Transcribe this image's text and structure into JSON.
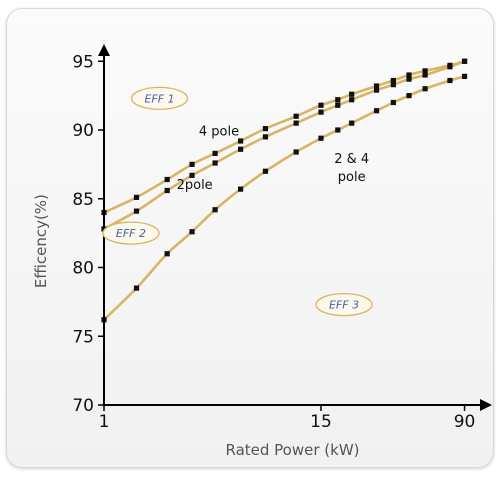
{
  "chart_data": {
    "type": "scatter",
    "xlabel": "Rated Power (kW)",
    "ylabel": "Efficency(%)",
    "x_scale": "log",
    "xlim": [
      1,
      100
    ],
    "ylim": [
      70,
      97
    ],
    "x_ticks": [
      {
        "value": 1,
        "label": "1"
      },
      {
        "value": 15,
        "label": "15"
      },
      {
        "value": 90,
        "label": "90"
      }
    ],
    "y_ticks": [
      {
        "value": 70,
        "label": "70"
      },
      {
        "value": 75,
        "label": "75"
      },
      {
        "value": 80,
        "label": "80"
      },
      {
        "value": 85,
        "label": "85"
      },
      {
        "value": 90,
        "label": "90"
      },
      {
        "value": 95,
        "label": "95"
      }
    ],
    "grid": false,
    "curve_color": "#d8b466",
    "marker_color": "#111111",
    "series": [
      {
        "name": "4 pole",
        "label_at": {
          "x": 4.2,
          "y": 89.6
        },
        "points": [
          [
            1,
            84.0
          ],
          [
            1.5,
            85.1
          ],
          [
            2.2,
            86.4
          ],
          [
            3,
            87.5
          ],
          [
            4,
            88.3
          ],
          [
            5.5,
            89.2
          ],
          [
            7.5,
            90.1
          ],
          [
            11,
            91.0
          ],
          [
            15,
            91.8
          ],
          [
            18.5,
            92.2
          ],
          [
            22,
            92.6
          ],
          [
            30,
            93.2
          ],
          [
            37,
            93.6
          ],
          [
            45,
            94.0
          ],
          [
            55,
            94.3
          ],
          [
            75,
            94.7
          ],
          [
            90,
            95.0
          ]
        ]
      },
      {
        "name": "2pole",
        "label_at": {
          "x": 3.1,
          "y": 85.7
        },
        "points": [
          [
            1,
            82.8
          ],
          [
            1.5,
            84.1
          ],
          [
            2.2,
            85.6
          ],
          [
            3,
            86.7
          ],
          [
            4,
            87.6
          ],
          [
            5.5,
            88.6
          ],
          [
            7.5,
            89.5
          ],
          [
            11,
            90.5
          ],
          [
            15,
            91.3
          ],
          [
            18.5,
            91.8
          ],
          [
            22,
            92.2
          ],
          [
            30,
            92.9
          ],
          [
            37,
            93.3
          ],
          [
            45,
            93.7
          ],
          [
            55,
            94.0
          ],
          [
            75,
            94.6
          ],
          [
            90,
            95.0
          ]
        ]
      },
      {
        "name": "2 & 4 pole",
        "label_lines": [
          "2 & 4",
          "pole"
        ],
        "label_at": {
          "x": 22,
          "y": 87.6
        },
        "points": [
          [
            1,
            76.2
          ],
          [
            1.5,
            78.5
          ],
          [
            2.2,
            81.0
          ],
          [
            3,
            82.6
          ],
          [
            4,
            84.2
          ],
          [
            5.5,
            85.7
          ],
          [
            7.5,
            87.0
          ],
          [
            11,
            88.4
          ],
          [
            15,
            89.4
          ],
          [
            18.5,
            90.0
          ],
          [
            22,
            90.5
          ],
          [
            30,
            91.4
          ],
          [
            37,
            92.0
          ],
          [
            45,
            92.5
          ],
          [
            55,
            93.0
          ],
          [
            75,
            93.6
          ],
          [
            90,
            93.9
          ]
        ]
      }
    ],
    "annotations": [
      {
        "text": "EFF 1",
        "x": 2.0,
        "y": 92.3
      },
      {
        "text": "EFF 2",
        "x": 1.4,
        "y": 82.5
      },
      {
        "text": "EFF 3",
        "x": 20,
        "y": 77.3
      }
    ]
  }
}
